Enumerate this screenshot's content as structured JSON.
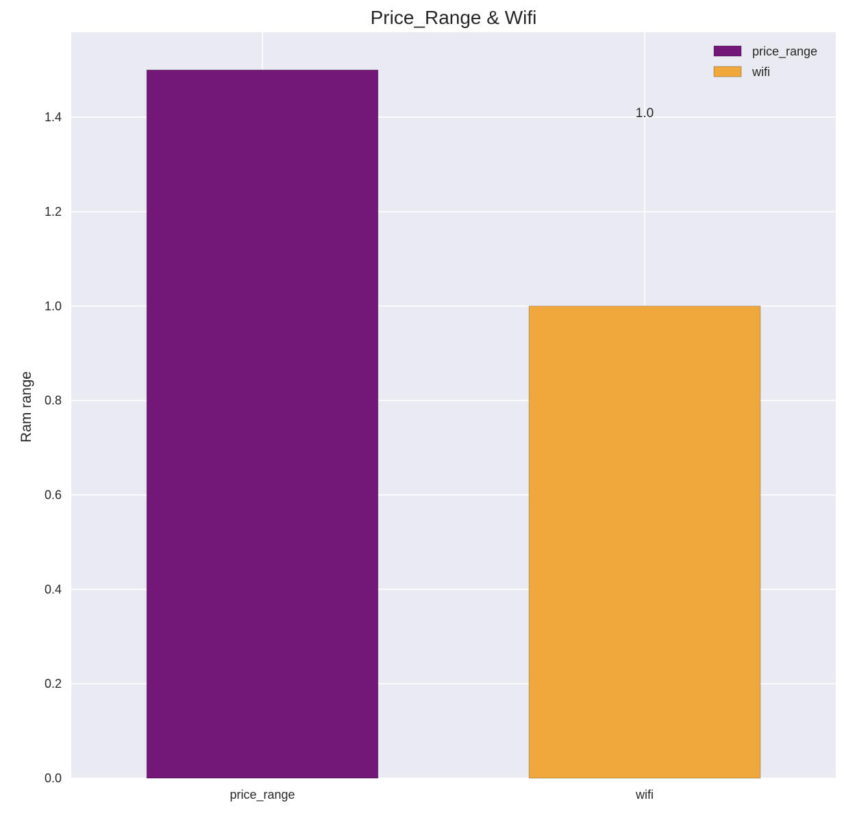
{
  "chart_data": {
    "type": "bar",
    "title": "Price_Range & Wifi",
    "xlabel": "",
    "ylabel": "Ram range",
    "categories": [
      "price_range",
      "wifi"
    ],
    "series": [
      {
        "name": "price_range",
        "values": [
          1.5,
          null
        ],
        "color": "#731878"
      },
      {
        "name": "wifi",
        "values": [
          null,
          1.0
        ],
        "color": "#F0A73C"
      }
    ],
    "data_labels": [
      {
        "category": "wifi",
        "text": "1.0"
      }
    ],
    "ylim": [
      0,
      1.58
    ],
    "yticks": [
      "0.0",
      "0.2",
      "0.4",
      "0.6",
      "0.8",
      "1.0",
      "1.2",
      "1.4"
    ],
    "grid": true,
    "legend_position": "top-right",
    "colors": {
      "plot_background": "#EAEAF2",
      "grid": "#FFFFFF",
      "text": "#262626"
    }
  }
}
